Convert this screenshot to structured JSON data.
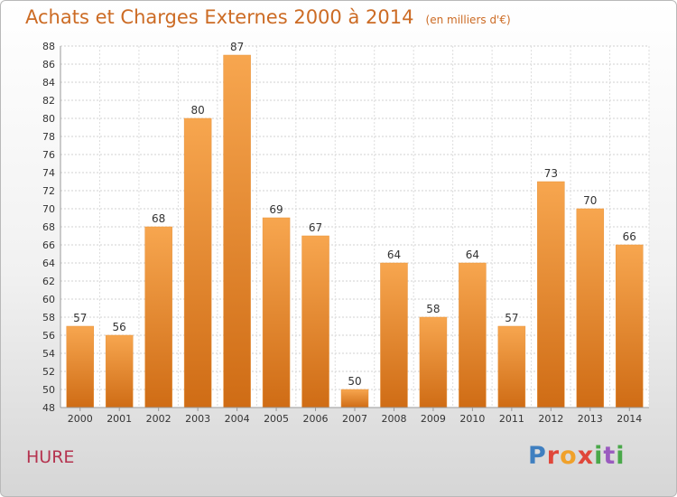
{
  "chart_data": {
    "type": "bar",
    "title": "Achats et Charges Externes 2000 à 2014",
    "subtitle": "(en milliers d'€)",
    "xlabel": "",
    "ylabel": "",
    "categories": [
      "2000",
      "2001",
      "2002",
      "2003",
      "2004",
      "2005",
      "2006",
      "2007",
      "2008",
      "2009",
      "2010",
      "2011",
      "2012",
      "2013",
      "2014"
    ],
    "values": [
      57,
      56,
      68,
      80,
      87,
      69,
      67,
      50,
      64,
      58,
      64,
      57,
      73,
      70,
      66
    ],
    "ylim": [
      48,
      88
    ],
    "yticks": [
      48,
      50,
      52,
      54,
      56,
      58,
      60,
      62,
      64,
      66,
      68,
      70,
      72,
      74,
      76,
      78,
      80,
      82,
      84,
      86,
      88
    ],
    "grid": true,
    "bar_color": "#f0902f"
  },
  "footer": {
    "commune": "HURE",
    "logo_text": "Proxiti"
  },
  "colors": {
    "title": "#cc6b24",
    "commune": "#b5334f",
    "bar_top": "#f7a44e",
    "bar_bottom": "#cf6c15"
  },
  "logo_icon": "proxiti-logo-icon"
}
